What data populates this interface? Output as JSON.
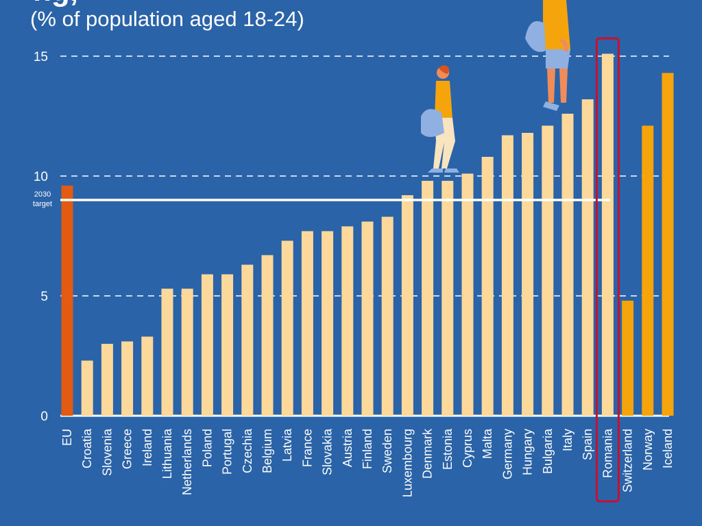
{
  "header": {
    "title_partial": "ng,",
    "subtitle": "(% of population aged 18-24)"
  },
  "chart_data": {
    "type": "bar",
    "title": "",
    "subtitle": "(% of population aged 18-24)",
    "xlabel": "",
    "ylabel": "",
    "ylim": [
      0,
      15
    ],
    "y_ticks": [
      0,
      5,
      10,
      15
    ],
    "grid": "dashed horizontal at 5, 10, 15",
    "categories": [
      "EU",
      "Croatia",
      "Slovenia",
      "Greece",
      "Ireland",
      "Lithuania",
      "Netherlands",
      "Poland",
      "Portugal",
      "Czechia",
      "Belgium",
      "Latvia",
      "France",
      "Slovakia",
      "Austria",
      "Finland",
      "Sweden",
      "Luxembourg",
      "Denmark",
      "Estonia",
      "Cyprus",
      "Malta",
      "Germany",
      "Hungary",
      "Bulgaria",
      "Italy",
      "Spain",
      "Romania",
      "Switzerland",
      "Norway",
      "Iceland"
    ],
    "values": [
      9.6,
      2.3,
      3.0,
      3.1,
      3.3,
      5.3,
      5.3,
      5.9,
      5.9,
      6.3,
      6.7,
      7.3,
      7.7,
      7.7,
      7.9,
      8.1,
      8.3,
      9.2,
      9.8,
      9.8,
      10.1,
      10.8,
      11.7,
      11.8,
      12.1,
      12.6,
      13.2,
      15.1,
      4.8,
      12.1,
      14.3
    ],
    "groups": [
      "eu",
      "member",
      "member",
      "member",
      "member",
      "member",
      "member",
      "member",
      "member",
      "member",
      "member",
      "member",
      "member",
      "member",
      "member",
      "member",
      "member",
      "member",
      "member",
      "member",
      "member",
      "member",
      "member",
      "member",
      "member",
      "member",
      "member",
      "member",
      "efta",
      "efta",
      "efta"
    ],
    "highlight": "Romania",
    "target": {
      "value": 9.0,
      "label_line1": "2030",
      "label_line2": "target"
    },
    "colors": {
      "background": "#2a63a8",
      "eu": "#e35a12",
      "member": "#fcd99a",
      "efta": "#f5a40b",
      "highlight_box": "#c8102e",
      "gridline": "#ffffff",
      "target_line": "#ffffff"
    }
  }
}
